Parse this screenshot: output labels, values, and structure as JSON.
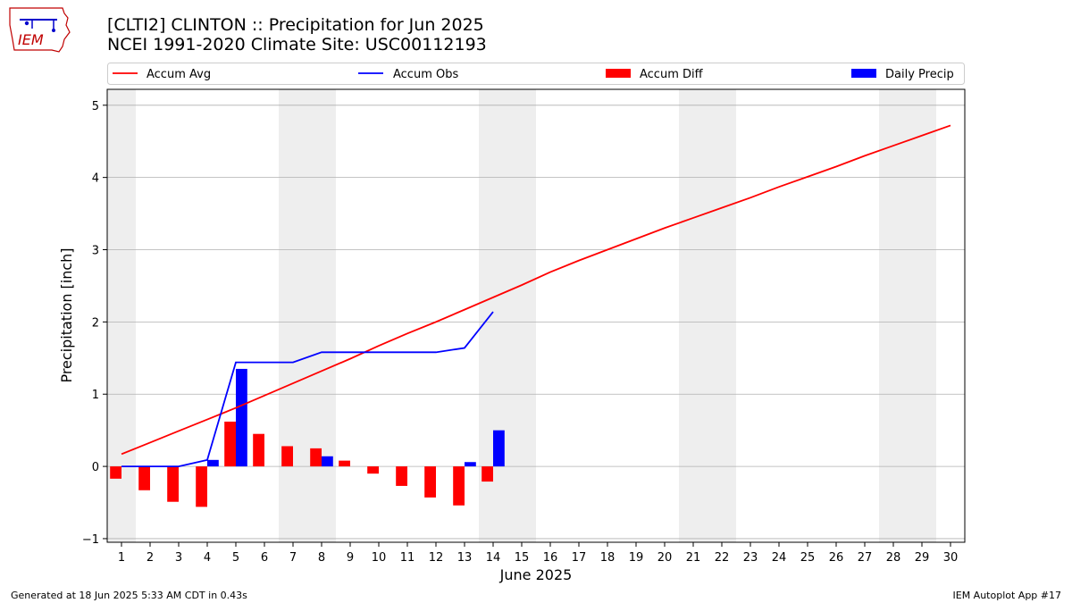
{
  "header": {
    "title_line1": "[CLTI2] CLINTON :: Precipitation for Jun 2025",
    "title_line2": "NCEI 1991-2020 Climate Site: USC00112193",
    "logo_text": "IEM"
  },
  "footer": {
    "left": "Generated at 18 Jun 2025 5:33 AM CDT in 0.43s",
    "right": "IEM Autoplot App #17"
  },
  "colors": {
    "avg": "#ff0000",
    "obs": "#0000ff",
    "diff": "#ff0000",
    "daily": "#0000ff",
    "weekend": "#eeeeee",
    "grid": "#b0b0b0"
  },
  "chart_data": {
    "type": "line",
    "xlabel": "June 2025",
    "ylabel": "Precipitation [inch]",
    "xlim": [
      0.5,
      30.5
    ],
    "ylim": [
      -1.05,
      5.22
    ],
    "yticks": [
      -1,
      0,
      1,
      2,
      3,
      4,
      5
    ],
    "grid": "horizontal",
    "legend_placement": "top",
    "days": [
      1,
      2,
      3,
      4,
      5,
      6,
      7,
      8,
      9,
      10,
      11,
      12,
      13,
      14,
      15,
      16,
      17,
      18,
      19,
      20,
      21,
      22,
      23,
      24,
      25,
      26,
      27,
      28,
      29,
      30
    ],
    "weekend_spans": [
      [
        0.5,
        1.5
      ],
      [
        6.5,
        8.5
      ],
      [
        13.5,
        15.5
      ],
      [
        20.5,
        22.5
      ],
      [
        27.5,
        29.5
      ]
    ],
    "legend": [
      "Accum Avg",
      "Accum Obs",
      "Accum Diff",
      "Daily Precip"
    ],
    "series": [
      {
        "name": "Accum Avg",
        "kind": "line",
        "x": [
          1,
          2,
          3,
          4,
          5,
          6,
          7,
          8,
          9,
          10,
          11,
          12,
          13,
          14,
          15,
          16,
          17,
          18,
          19,
          20,
          21,
          22,
          23,
          24,
          25,
          26,
          27,
          28,
          29,
          30
        ],
        "values": [
          0.17,
          0.33,
          0.49,
          0.65,
          0.81,
          0.98,
          1.15,
          1.32,
          1.49,
          1.67,
          1.84,
          2.0,
          2.17,
          2.34,
          2.51,
          2.69,
          2.85,
          3.0,
          3.15,
          3.3,
          3.44,
          3.58,
          3.72,
          3.87,
          4.01,
          4.15,
          4.3,
          4.44,
          4.58,
          4.72
        ]
      },
      {
        "name": "Accum Obs",
        "kind": "line",
        "x": [
          1,
          2,
          3,
          4,
          5,
          6,
          7,
          8,
          9,
          10,
          11,
          12,
          13,
          14
        ],
        "values": [
          0.0,
          0.0,
          0.0,
          0.09,
          1.44,
          1.44,
          1.44,
          1.58,
          1.58,
          1.58,
          1.58,
          1.58,
          1.64,
          2.14
        ]
      },
      {
        "name": "Accum Diff",
        "kind": "bar",
        "x": [
          1,
          2,
          3,
          4,
          5,
          6,
          7,
          8,
          9,
          10,
          11,
          12,
          13,
          14
        ],
        "values": [
          -0.17,
          -0.33,
          -0.49,
          -0.56,
          0.62,
          0.45,
          0.28,
          0.25,
          0.08,
          -0.1,
          -0.27,
          -0.43,
          -0.54,
          -0.21
        ]
      },
      {
        "name": "Daily Precip",
        "kind": "bar",
        "x": [
          1,
          2,
          3,
          4,
          5,
          6,
          7,
          8,
          9,
          10,
          11,
          12,
          13,
          14
        ],
        "values": [
          0.0,
          0.0,
          0.0,
          0.09,
          1.35,
          0.0,
          0.0,
          0.14,
          0.0,
          0.0,
          0.0,
          0.0,
          0.06,
          0.5
        ]
      }
    ]
  }
}
